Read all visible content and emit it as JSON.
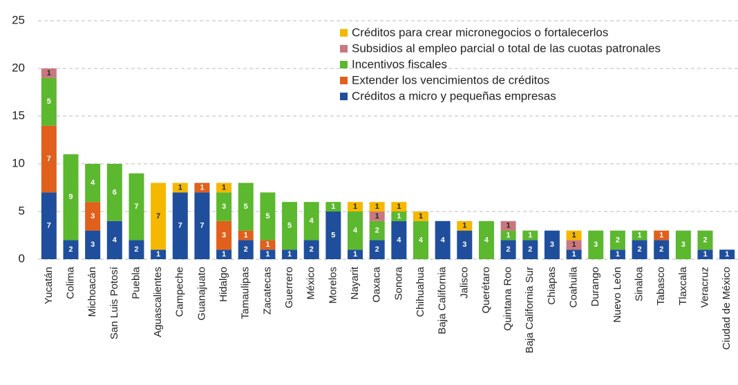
{
  "chart_data": {
    "type": "stacked_bar",
    "categories": [
      "Yucatán",
      "Colima",
      "Michoacán",
      "San Luis Potosí",
      "Puebla",
      "Aguascalientes",
      "Campeche",
      "Guanajuato",
      "Hidalgo",
      "Tamaulipas",
      "Zacatecas",
      "Guerrero",
      "México",
      "Morelos",
      "Nayarit",
      "Oaxaca",
      "Sonora",
      "Chihuahua",
      "Baja California",
      "Jalisco",
      "Querétaro",
      "Quintana Roo",
      "Baja California Sur",
      "Chiapas",
      "Coahuila",
      "Durango",
      "Nuevo León",
      "Sinaloa",
      "Tabasco",
      "Tlaxcala",
      "Veracruz",
      "Ciudad de México"
    ],
    "series": [
      {
        "name": "Créditos a micro y pequeñas empresas",
        "color": "#1f4e9c",
        "values": [
          7,
          2,
          3,
          4,
          2,
          1,
          7,
          7,
          1,
          2,
          1,
          1,
          2,
          5,
          1,
          2,
          4,
          0,
          4,
          3,
          0,
          2,
          2,
          3,
          1,
          0,
          1,
          2,
          2,
          0,
          1,
          1
        ]
      },
      {
        "name": "Extender los vencimientos de créditos",
        "color": "#e0601c",
        "values": [
          7,
          0,
          3,
          0,
          0,
          0,
          0,
          1,
          3,
          1,
          1,
          0,
          0,
          0,
          0,
          0,
          0,
          0,
          0,
          0,
          0,
          0,
          0,
          0,
          0,
          0,
          0,
          0,
          1,
          0,
          0,
          0
        ]
      },
      {
        "name": "Incentivos fiscales",
        "color": "#5cb82e",
        "values": [
          5,
          9,
          4,
          6,
          7,
          0,
          0,
          0,
          3,
          5,
          5,
          5,
          4,
          1,
          4,
          2,
          1,
          4,
          0,
          0,
          4,
          1,
          1,
          0,
          0,
          3,
          2,
          1,
          0,
          3,
          2,
          0
        ]
      },
      {
        "name": "Subsidios al empleo parcial o total de las cuotas patronales",
        "color": "#c9787f",
        "values": [
          1,
          0,
          0,
          0,
          0,
          0,
          0,
          0,
          0,
          0,
          0,
          0,
          0,
          0,
          0,
          1,
          0,
          0,
          0,
          0,
          0,
          1,
          0,
          0,
          1,
          0,
          0,
          0,
          0,
          0,
          0,
          0
        ]
      },
      {
        "name": "Créditos para crear micronegocios o fortalecerlos",
        "color": "#f5b800",
        "values": [
          0,
          0,
          0,
          0,
          0,
          7,
          1,
          0,
          1,
          0,
          0,
          0,
          0,
          0,
          1,
          1,
          1,
          1,
          0,
          1,
          0,
          0,
          0,
          0,
          1,
          0,
          0,
          0,
          0,
          0,
          0,
          0
        ]
      }
    ],
    "ylim": [
      0,
      25
    ],
    "yticks": [
      0,
      5,
      10,
      15,
      20,
      25
    ],
    "grid": true
  }
}
